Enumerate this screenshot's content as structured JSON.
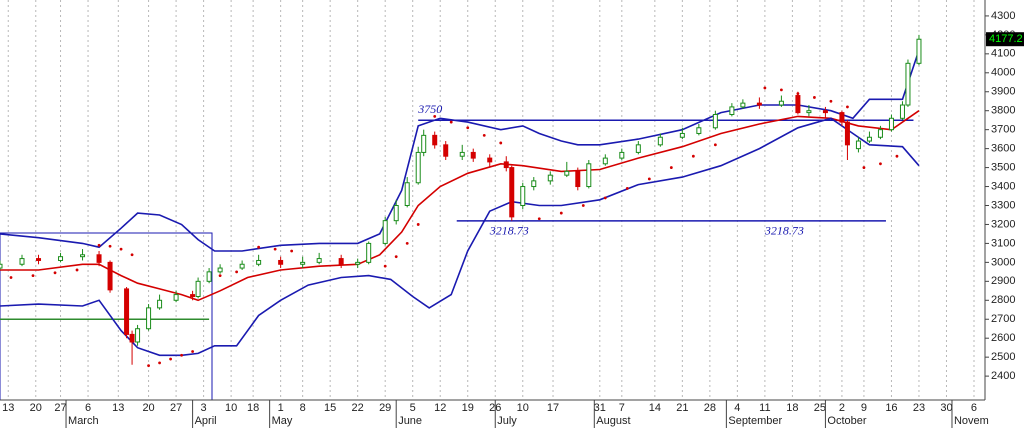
{
  "chart_data": {
    "type": "candlestick",
    "xlim": [
      0,
      179
    ],
    "ylim": [
      2274,
      4384
    ],
    "yticks": [
      2400,
      2500,
      2600,
      2700,
      2800,
      2900,
      3000,
      3100,
      3200,
      3300,
      3400,
      3500,
      3600,
      3700,
      3800,
      3900,
      4000,
      4100,
      4200,
      4300
    ],
    "xticks": [
      {
        "value": 1.5,
        "label": "13"
      },
      {
        "value": 6.5,
        "label": "20"
      },
      {
        "value": 11,
        "label": "27"
      },
      {
        "value": 16,
        "label": "6"
      },
      {
        "value": 21.5,
        "label": "13"
      },
      {
        "value": 27,
        "label": "20"
      },
      {
        "value": 32,
        "label": "27"
      },
      {
        "value": 37,
        "label": "3"
      },
      {
        "value": 42,
        "label": "10"
      },
      {
        "value": 46,
        "label": "18"
      },
      {
        "value": 51,
        "label": "1"
      },
      {
        "value": 55,
        "label": "8"
      },
      {
        "value": 60,
        "label": "15"
      },
      {
        "value": 65,
        "label": "22"
      },
      {
        "value": 70,
        "label": "29"
      },
      {
        "value": 75,
        "label": "5"
      },
      {
        "value": 80,
        "label": "12"
      },
      {
        "value": 85,
        "label": "19"
      },
      {
        "value": 90,
        "label": "26"
      },
      {
        "value": 95,
        "label": "10"
      },
      {
        "value": 100.5,
        "label": "17"
      },
      {
        "value": 109,
        "label": "31"
      },
      {
        "value": 113,
        "label": "7"
      },
      {
        "value": 119,
        "label": "14"
      },
      {
        "value": 124,
        "label": "21"
      },
      {
        "value": 129,
        "label": "28"
      },
      {
        "value": 134,
        "label": "4"
      },
      {
        "value": 139,
        "label": "11"
      },
      {
        "value": 144,
        "label": "18"
      },
      {
        "value": 149,
        "label": "25"
      },
      {
        "value": 153,
        "label": "2"
      },
      {
        "value": 157,
        "label": "9"
      },
      {
        "value": 162,
        "label": "16"
      },
      {
        "value": 167,
        "label": "23"
      },
      {
        "value": 172,
        "label": "30"
      },
      {
        "value": 177,
        "label": "6"
      }
    ],
    "x_month_labels": [
      {
        "value": 12,
        "label": "March"
      },
      {
        "value": 35,
        "label": "April"
      },
      {
        "value": 49,
        "label": "May"
      },
      {
        "value": 72,
        "label": "June"
      },
      {
        "value": 90,
        "label": "July"
      },
      {
        "value": 108,
        "label": "August"
      },
      {
        "value": 132,
        "label": "September"
      },
      {
        "value": 150,
        "label": "October"
      },
      {
        "value": 173,
        "label": "Novem"
      }
    ],
    "grid": true,
    "up_color": "#1a8c1a",
    "down_color": "#d40000",
    "candles": {
      "x": [
        0,
        4,
        7,
        11,
        15,
        18,
        20,
        23,
        24,
        25,
        27,
        29,
        32,
        35,
        36,
        38,
        40,
        44,
        47,
        51,
        55,
        58,
        62,
        65,
        67,
        70,
        72,
        74,
        76,
        77,
        79,
        81,
        84,
        86,
        89,
        92,
        93,
        95,
        97,
        100,
        103,
        105,
        107,
        110,
        113,
        116,
        120,
        124,
        127,
        130,
        133,
        135,
        138,
        142,
        145,
        147,
        150,
        153,
        154,
        156,
        158,
        160,
        162,
        164,
        165,
        167
      ],
      "open": [
        2970,
        2990,
        3020,
        3010,
        3030,
        3040,
        3000,
        2860,
        2620,
        2580,
        2650,
        2760,
        2800,
        2830,
        2820,
        2900,
        2950,
        2970,
        2990,
        3010,
        2990,
        3000,
        3020,
        2990,
        3000,
        3100,
        3220,
        3300,
        3420,
        3580,
        3670,
        3620,
        3560,
        3580,
        3550,
        3530,
        3500,
        3300,
        3400,
        3430,
        3460,
        3480,
        3400,
        3520,
        3550,
        3580,
        3620,
        3660,
        3680,
        3710,
        3780,
        3820,
        3840,
        3830,
        3880,
        3790,
        3800,
        3790,
        3740,
        3600,
        3640,
        3660,
        3700,
        3760,
        3830,
        4050
      ],
      "high": [
        3010,
        3040,
        3040,
        3050,
        3070,
        3060,
        3010,
        2870,
        2640,
        2670,
        2780,
        2830,
        2850,
        2850,
        2920,
        2970,
        2990,
        3010,
        3040,
        3030,
        3030,
        3050,
        3040,
        3020,
        3110,
        3240,
        3330,
        3450,
        3610,
        3700,
        3690,
        3640,
        3620,
        3600,
        3570,
        3560,
        3510,
        3420,
        3450,
        3480,
        3530,
        3500,
        3540,
        3570,
        3600,
        3640,
        3680,
        3710,
        3730,
        3800,
        3840,
        3860,
        3870,
        3880,
        3900,
        3830,
        3820,
        3800,
        3750,
        3660,
        3690,
        3720,
        3780,
        3850,
        4070,
        4200
      ],
      "low": [
        2960,
        2980,
        2990,
        3000,
        3010,
        2980,
        2840,
        2600,
        2460,
        2560,
        2640,
        2750,
        2790,
        2800,
        2810,
        2890,
        2940,
        2960,
        2980,
        2970,
        2970,
        2990,
        2970,
        2970,
        2990,
        3090,
        3200,
        3290,
        3410,
        3560,
        3600,
        3540,
        3540,
        3530,
        3500,
        3480,
        3220,
        3280,
        3380,
        3410,
        3450,
        3380,
        3390,
        3510,
        3540,
        3570,
        3610,
        3650,
        3670,
        3700,
        3770,
        3810,
        3810,
        3820,
        3780,
        3770,
        3760,
        3720,
        3540,
        3580,
        3630,
        3650,
        3690,
        3750,
        3820,
        4040
      ],
      "close": [
        2990,
        3020,
        3010,
        3030,
        3040,
        3000,
        2855,
        2620,
        2580,
        2650,
        2760,
        2800,
        2830,
        2820,
        2900,
        2950,
        2970,
        2990,
        3010,
        2990,
        3000,
        3020,
        2990,
        3000,
        3100,
        3220,
        3300,
        3420,
        3580,
        3670,
        3620,
        3560,
        3580,
        3550,
        3530,
        3500,
        3240,
        3400,
        3430,
        3460,
        3480,
        3400,
        3520,
        3550,
        3580,
        3620,
        3660,
        3680,
        3710,
        3780,
        3820,
        3840,
        3830,
        3850,
        3790,
        3800,
        3790,
        3740,
        3620,
        3640,
        3660,
        3700,
        3760,
        3830,
        4050,
        4177
      ]
    },
    "series": [
      {
        "name": "Upper Band",
        "color": "#1a1ab0",
        "x": [
          0,
          7,
          15,
          18,
          22,
          25,
          29,
          33,
          36,
          39,
          44,
          51,
          58,
          65,
          69,
          73,
          76,
          80,
          85,
          91,
          95,
          98,
          102,
          105,
          109,
          116,
          124,
          131,
          138,
          145,
          151,
          155,
          158,
          164,
          167
        ],
        "values": [
          3150,
          3130,
          3100,
          3080,
          3180,
          3260,
          3250,
          3200,
          3120,
          3060,
          3060,
          3090,
          3100,
          3100,
          3150,
          3380,
          3720,
          3760,
          3740,
          3700,
          3720,
          3680,
          3640,
          3620,
          3620,
          3650,
          3700,
          3790,
          3830,
          3830,
          3800,
          3760,
          3860,
          3860,
          4120
        ]
      },
      {
        "name": "Moving Average",
        "color": "#d40000",
        "x": [
          0,
          7,
          15,
          18,
          22,
          25,
          29,
          33,
          36,
          40,
          45,
          51,
          58,
          65,
          69,
          73,
          76,
          80,
          85,
          91,
          95,
          102,
          109,
          116,
          124,
          131,
          138,
          145,
          151,
          156,
          162,
          167
        ],
        "values": [
          2960,
          2960,
          2990,
          2990,
          2930,
          2890,
          2860,
          2830,
          2800,
          2850,
          2920,
          2960,
          2980,
          2990,
          3040,
          3160,
          3300,
          3400,
          3470,
          3520,
          3510,
          3480,
          3490,
          3550,
          3610,
          3680,
          3730,
          3770,
          3760,
          3720,
          3700,
          3800
        ]
      },
      {
        "name": "Lower Band",
        "color": "#1a1ab0",
        "x": [
          0,
          7,
          15,
          18,
          22,
          25,
          29,
          33,
          36,
          39,
          43,
          47,
          51,
          56,
          62,
          67,
          71,
          75,
          78,
          82,
          85,
          89,
          93,
          98,
          102,
          109,
          116,
          124,
          131,
          138,
          145,
          151,
          155,
          158,
          164,
          167
        ],
        "values": [
          2770,
          2780,
          2770,
          2800,
          2640,
          2550,
          2510,
          2510,
          2520,
          2560,
          2560,
          2720,
          2800,
          2880,
          2920,
          2930,
          2910,
          2820,
          2760,
          2830,
          3060,
          3270,
          3320,
          3300,
          3300,
          3330,
          3410,
          3450,
          3510,
          3600,
          3710,
          3760,
          3680,
          3620,
          3610,
          3510
        ]
      }
    ],
    "sar": {
      "color": "#d40000",
      "x": [
        2,
        6,
        10,
        14,
        18,
        20,
        22,
        24,
        27,
        29,
        31,
        33,
        35,
        40,
        43,
        47,
        50,
        53,
        70,
        72,
        74,
        76,
        79,
        82,
        85,
        88,
        91,
        98,
        102,
        106,
        110,
        114,
        118,
        122,
        126,
        130,
        139,
        142,
        145,
        148,
        151,
        154,
        157,
        160,
        163
      ],
      "values": [
        2920,
        2930,
        2945,
        2960,
        3090,
        3085,
        3070,
        3040,
        2455,
        2470,
        2490,
        2510,
        2530,
        2930,
        2950,
        3080,
        3070,
        3060,
        2980,
        3030,
        3100,
        3200,
        3770,
        3740,
        3710,
        3670,
        3630,
        3230,
        3260,
        3300,
        3340,
        3390,
        3440,
        3500,
        3560,
        3620,
        3920,
        3910,
        3890,
        3870,
        3850,
        3820,
        3500,
        3520,
        3560
      ]
    },
    "levels": [
      {
        "value": 3750,
        "x": [
          76,
          166
        ],
        "color": "#1a1ab0"
      },
      {
        "value": 3218.73,
        "x": [
          83,
          161
        ],
        "color": "#1a1ab0"
      },
      {
        "value": 2700,
        "x": [
          0,
          38
        ],
        "color": "#2e8b2e"
      }
    ],
    "annotations": [
      {
        "text": "3750"
      },
      {
        "text": "3218.73"
      },
      {
        "text": "3218.73"
      }
    ],
    "last_price": {
      "value": 4177.2,
      "label": "4177.2"
    }
  }
}
